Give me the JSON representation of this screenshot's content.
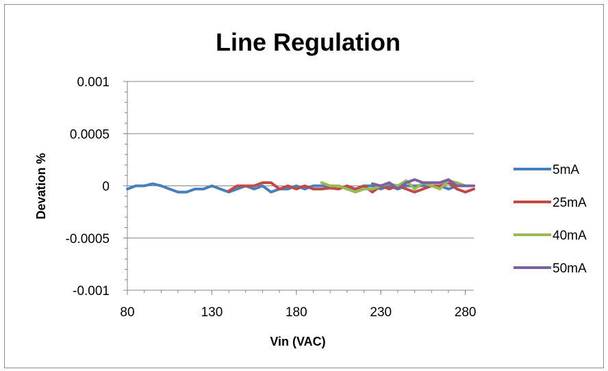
{
  "chart_data": {
    "type": "line",
    "title": "Line Regulation",
    "xlabel": "Vin (VAC)",
    "ylabel": "Devation %",
    "xlim": [
      80,
      285
    ],
    "ylim": [
      -0.001,
      0.001
    ],
    "x_ticks": [
      "80",
      "130",
      "180",
      "230",
      "280"
    ],
    "y_ticks": [
      "0.001",
      "0.0005",
      "0",
      "-0.0005",
      "-0.001"
    ],
    "grid": "horizontal major gridlines",
    "legend_position": "right",
    "series": [
      {
        "name": "5mA",
        "color": "#4a7ebb",
        "points": [
          [
            80,
            -3e-05
          ],
          [
            85,
            0
          ],
          [
            90,
            0
          ],
          [
            95,
            2e-05
          ],
          [
            100,
            0
          ],
          [
            105,
            -3e-05
          ],
          [
            110,
            -6e-05
          ],
          [
            115,
            -6e-05
          ],
          [
            120,
            -3e-05
          ],
          [
            125,
            -3e-05
          ],
          [
            130,
            0
          ],
          [
            135,
            -3e-05
          ],
          [
            140,
            -6e-05
          ],
          [
            145,
            -3e-05
          ],
          [
            150,
            0
          ],
          [
            155,
            -3e-05
          ],
          [
            160,
            0
          ],
          [
            165,
            -6e-05
          ],
          [
            170,
            -3e-05
          ],
          [
            175,
            -3e-05
          ],
          [
            180,
            0
          ],
          [
            185,
            -3e-05
          ],
          [
            190,
            0
          ],
          [
            195,
            0
          ],
          [
            200,
            0
          ],
          [
            205,
            0
          ],
          [
            210,
            -3e-05
          ],
          [
            215,
            -3e-05
          ],
          [
            220,
            0
          ],
          [
            225,
            0
          ],
          [
            230,
            -3e-05
          ],
          [
            235,
            0
          ],
          [
            240,
            -3e-05
          ],
          [
            245,
            0
          ],
          [
            250,
            0
          ],
          [
            255,
            0
          ],
          [
            260,
            0
          ],
          [
            265,
            0
          ],
          [
            270,
            -3e-05
          ],
          [
            275,
            0
          ],
          [
            280,
            0
          ],
          [
            285,
            0
          ]
        ]
      },
      {
        "name": "25mA",
        "color": "#be4b48",
        "points": [
          [
            140,
            -5e-05
          ],
          [
            145,
            0
          ],
          [
            150,
            0
          ],
          [
            155,
            0
          ],
          [
            160,
            3e-05
          ],
          [
            165,
            3e-05
          ],
          [
            170,
            -3e-05
          ],
          [
            175,
            0
          ],
          [
            180,
            -3e-05
          ],
          [
            185,
            0
          ],
          [
            190,
            -3e-05
          ],
          [
            195,
            -3e-05
          ],
          [
            200,
            -2e-05
          ],
          [
            205,
            -3e-05
          ],
          [
            210,
            0
          ],
          [
            215,
            -3e-05
          ],
          [
            220,
            0
          ],
          [
            225,
            -6e-05
          ],
          [
            230,
            0
          ],
          [
            235,
            -3e-05
          ],
          [
            240,
            0
          ],
          [
            245,
            -3e-05
          ],
          [
            250,
            -6e-05
          ],
          [
            255,
            -3e-05
          ],
          [
            260,
            0
          ],
          [
            265,
            0
          ],
          [
            270,
            3e-05
          ],
          [
            275,
            -3e-05
          ],
          [
            280,
            -6e-05
          ],
          [
            285,
            -3e-05
          ]
        ]
      },
      {
        "name": "40mA",
        "color": "#98b954",
        "points": [
          [
            195,
            3e-05
          ],
          [
            200,
            0
          ],
          [
            205,
            0
          ],
          [
            210,
            -3e-05
          ],
          [
            215,
            -6e-05
          ],
          [
            220,
            -3e-05
          ],
          [
            225,
            -3e-05
          ],
          [
            230,
            0
          ],
          [
            235,
            2e-05
          ],
          [
            240,
            0
          ],
          [
            245,
            5e-05
          ],
          [
            250,
            -3e-05
          ],
          [
            255,
            3e-05
          ],
          [
            260,
            0
          ],
          [
            265,
            -3e-05
          ],
          [
            270,
            5e-05
          ],
          [
            275,
            3e-05
          ],
          [
            280,
            0
          ],
          [
            285,
            0
          ]
        ]
      },
      {
        "name": "50mA",
        "color": "#7d60a0",
        "points": [
          [
            225,
            2e-05
          ],
          [
            230,
            0
          ],
          [
            235,
            3e-05
          ],
          [
            240,
            -3e-05
          ],
          [
            245,
            3e-05
          ],
          [
            250,
            6e-05
          ],
          [
            255,
            3e-05
          ],
          [
            260,
            3e-05
          ],
          [
            265,
            3e-05
          ],
          [
            270,
            6e-05
          ],
          [
            275,
            0
          ],
          [
            280,
            0
          ],
          [
            285,
            0
          ]
        ]
      }
    ]
  }
}
